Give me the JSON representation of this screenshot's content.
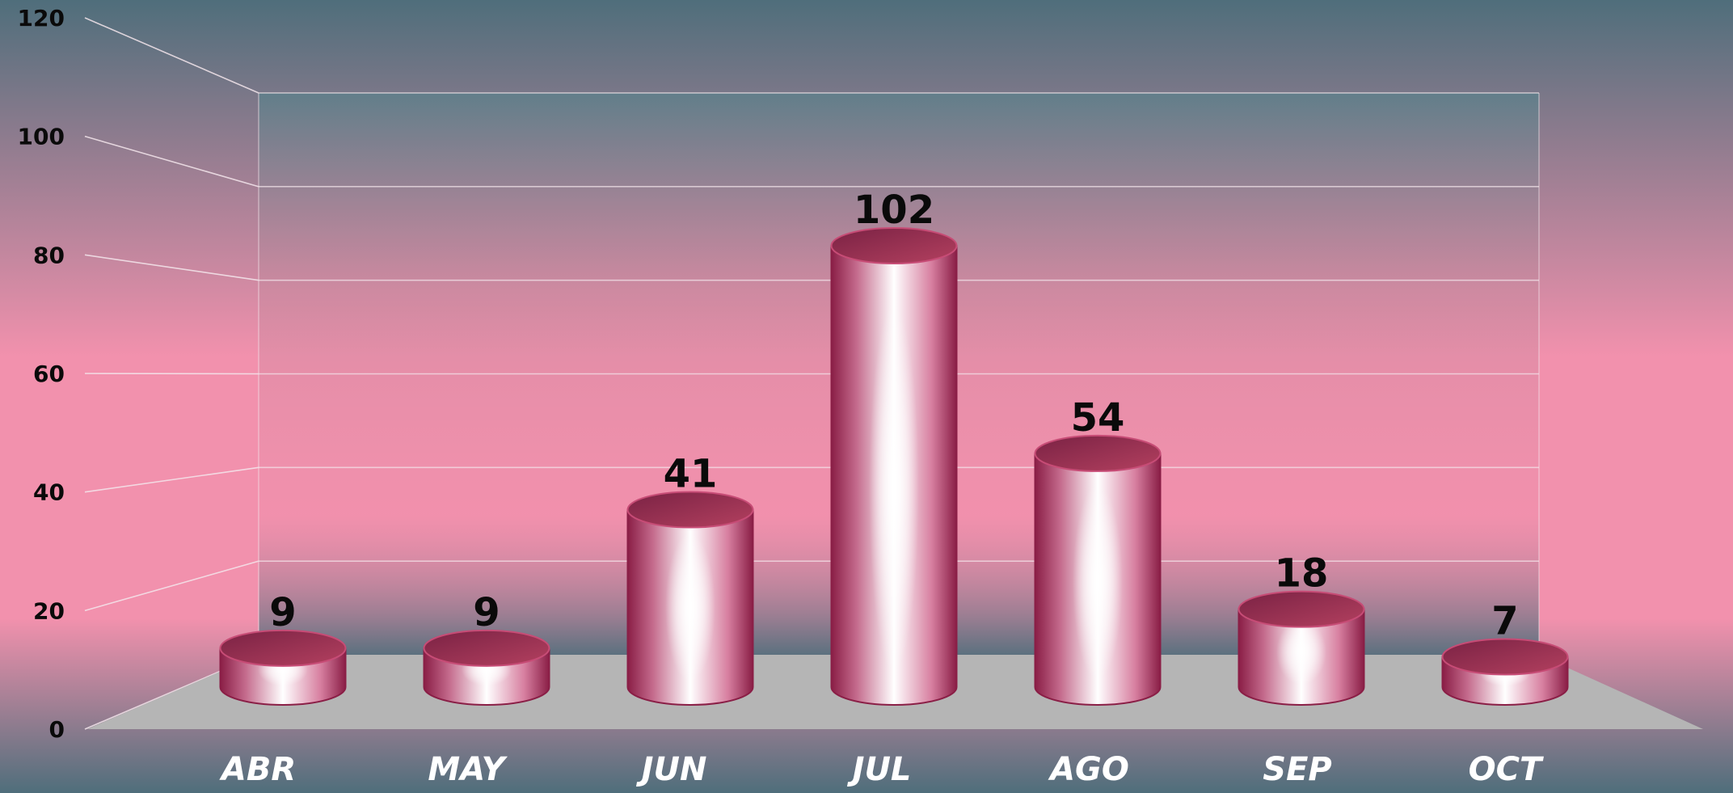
{
  "chart_data": {
    "type": "bar",
    "title": "",
    "xlabel": "",
    "ylabel": "",
    "categories": [
      "ABR",
      "MAY",
      "JUN",
      "JUL",
      "AGO",
      "SEP",
      "OCT"
    ],
    "values": [
      9,
      9,
      41,
      102,
      54,
      18,
      7
    ],
    "ylim": [
      0,
      120
    ],
    "yticks": [
      "0",
      "20",
      "40",
      "60",
      "80",
      "100",
      "120"
    ],
    "grid": true,
    "legend": "none",
    "style": "3d-cylinder"
  },
  "colors": {
    "background_top": "#4f6e7b",
    "background_mid": "#f291ad",
    "bar_edge": "#8a1e46",
    "bar_highlight": "#ffffff",
    "bar_top": "#b3405f",
    "floor": "#b5b5b5",
    "grid": "#f4e6ec",
    "category_label": "#ffffff",
    "value_label": "#0a0a0a"
  }
}
